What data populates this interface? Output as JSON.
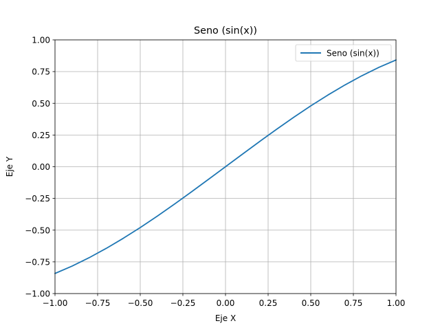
{
  "chart_data": {
    "type": "line",
    "title": "Seno (sin(x))",
    "xlabel": "Eje X",
    "ylabel": "Eje Y",
    "xlim": [
      -1.0,
      1.0
    ],
    "ylim": [
      -1.0,
      1.0
    ],
    "grid": true,
    "legend_position": "top-right",
    "xticks": [
      -1.0,
      -0.75,
      -0.5,
      -0.25,
      0.0,
      0.25,
      0.5,
      0.75,
      1.0
    ],
    "xtick_labels": [
      "−1.00",
      "−0.75",
      "−0.50",
      "−0.25",
      "0.00",
      "0.25",
      "0.50",
      "0.75",
      "1.00"
    ],
    "yticks": [
      -1.0,
      -0.75,
      -0.5,
      -0.25,
      0.0,
      0.25,
      0.5,
      0.75,
      1.0
    ],
    "ytick_labels": [
      "−1.00",
      "−0.75",
      "−0.50",
      "−0.25",
      "0.00",
      "0.25",
      "0.50",
      "0.75",
      "1.00"
    ],
    "series": [
      {
        "name": "Seno (sin(x))",
        "color": "#1f77b4",
        "x": [
          -1.0,
          -0.9,
          -0.8,
          -0.7,
          -0.6,
          -0.5,
          -0.4,
          -0.3,
          -0.2,
          -0.1,
          0.0,
          0.1,
          0.2,
          0.3,
          0.4,
          0.5,
          0.6,
          0.7,
          0.8,
          0.9,
          1.0
        ],
        "y": [
          -0.8415,
          -0.7833,
          -0.7174,
          -0.6442,
          -0.5646,
          -0.4794,
          -0.3894,
          -0.2955,
          -0.1987,
          -0.0998,
          0.0,
          0.0998,
          0.1987,
          0.2955,
          0.3894,
          0.4794,
          0.5646,
          0.6442,
          0.7174,
          0.7833,
          0.8415
        ]
      }
    ]
  }
}
